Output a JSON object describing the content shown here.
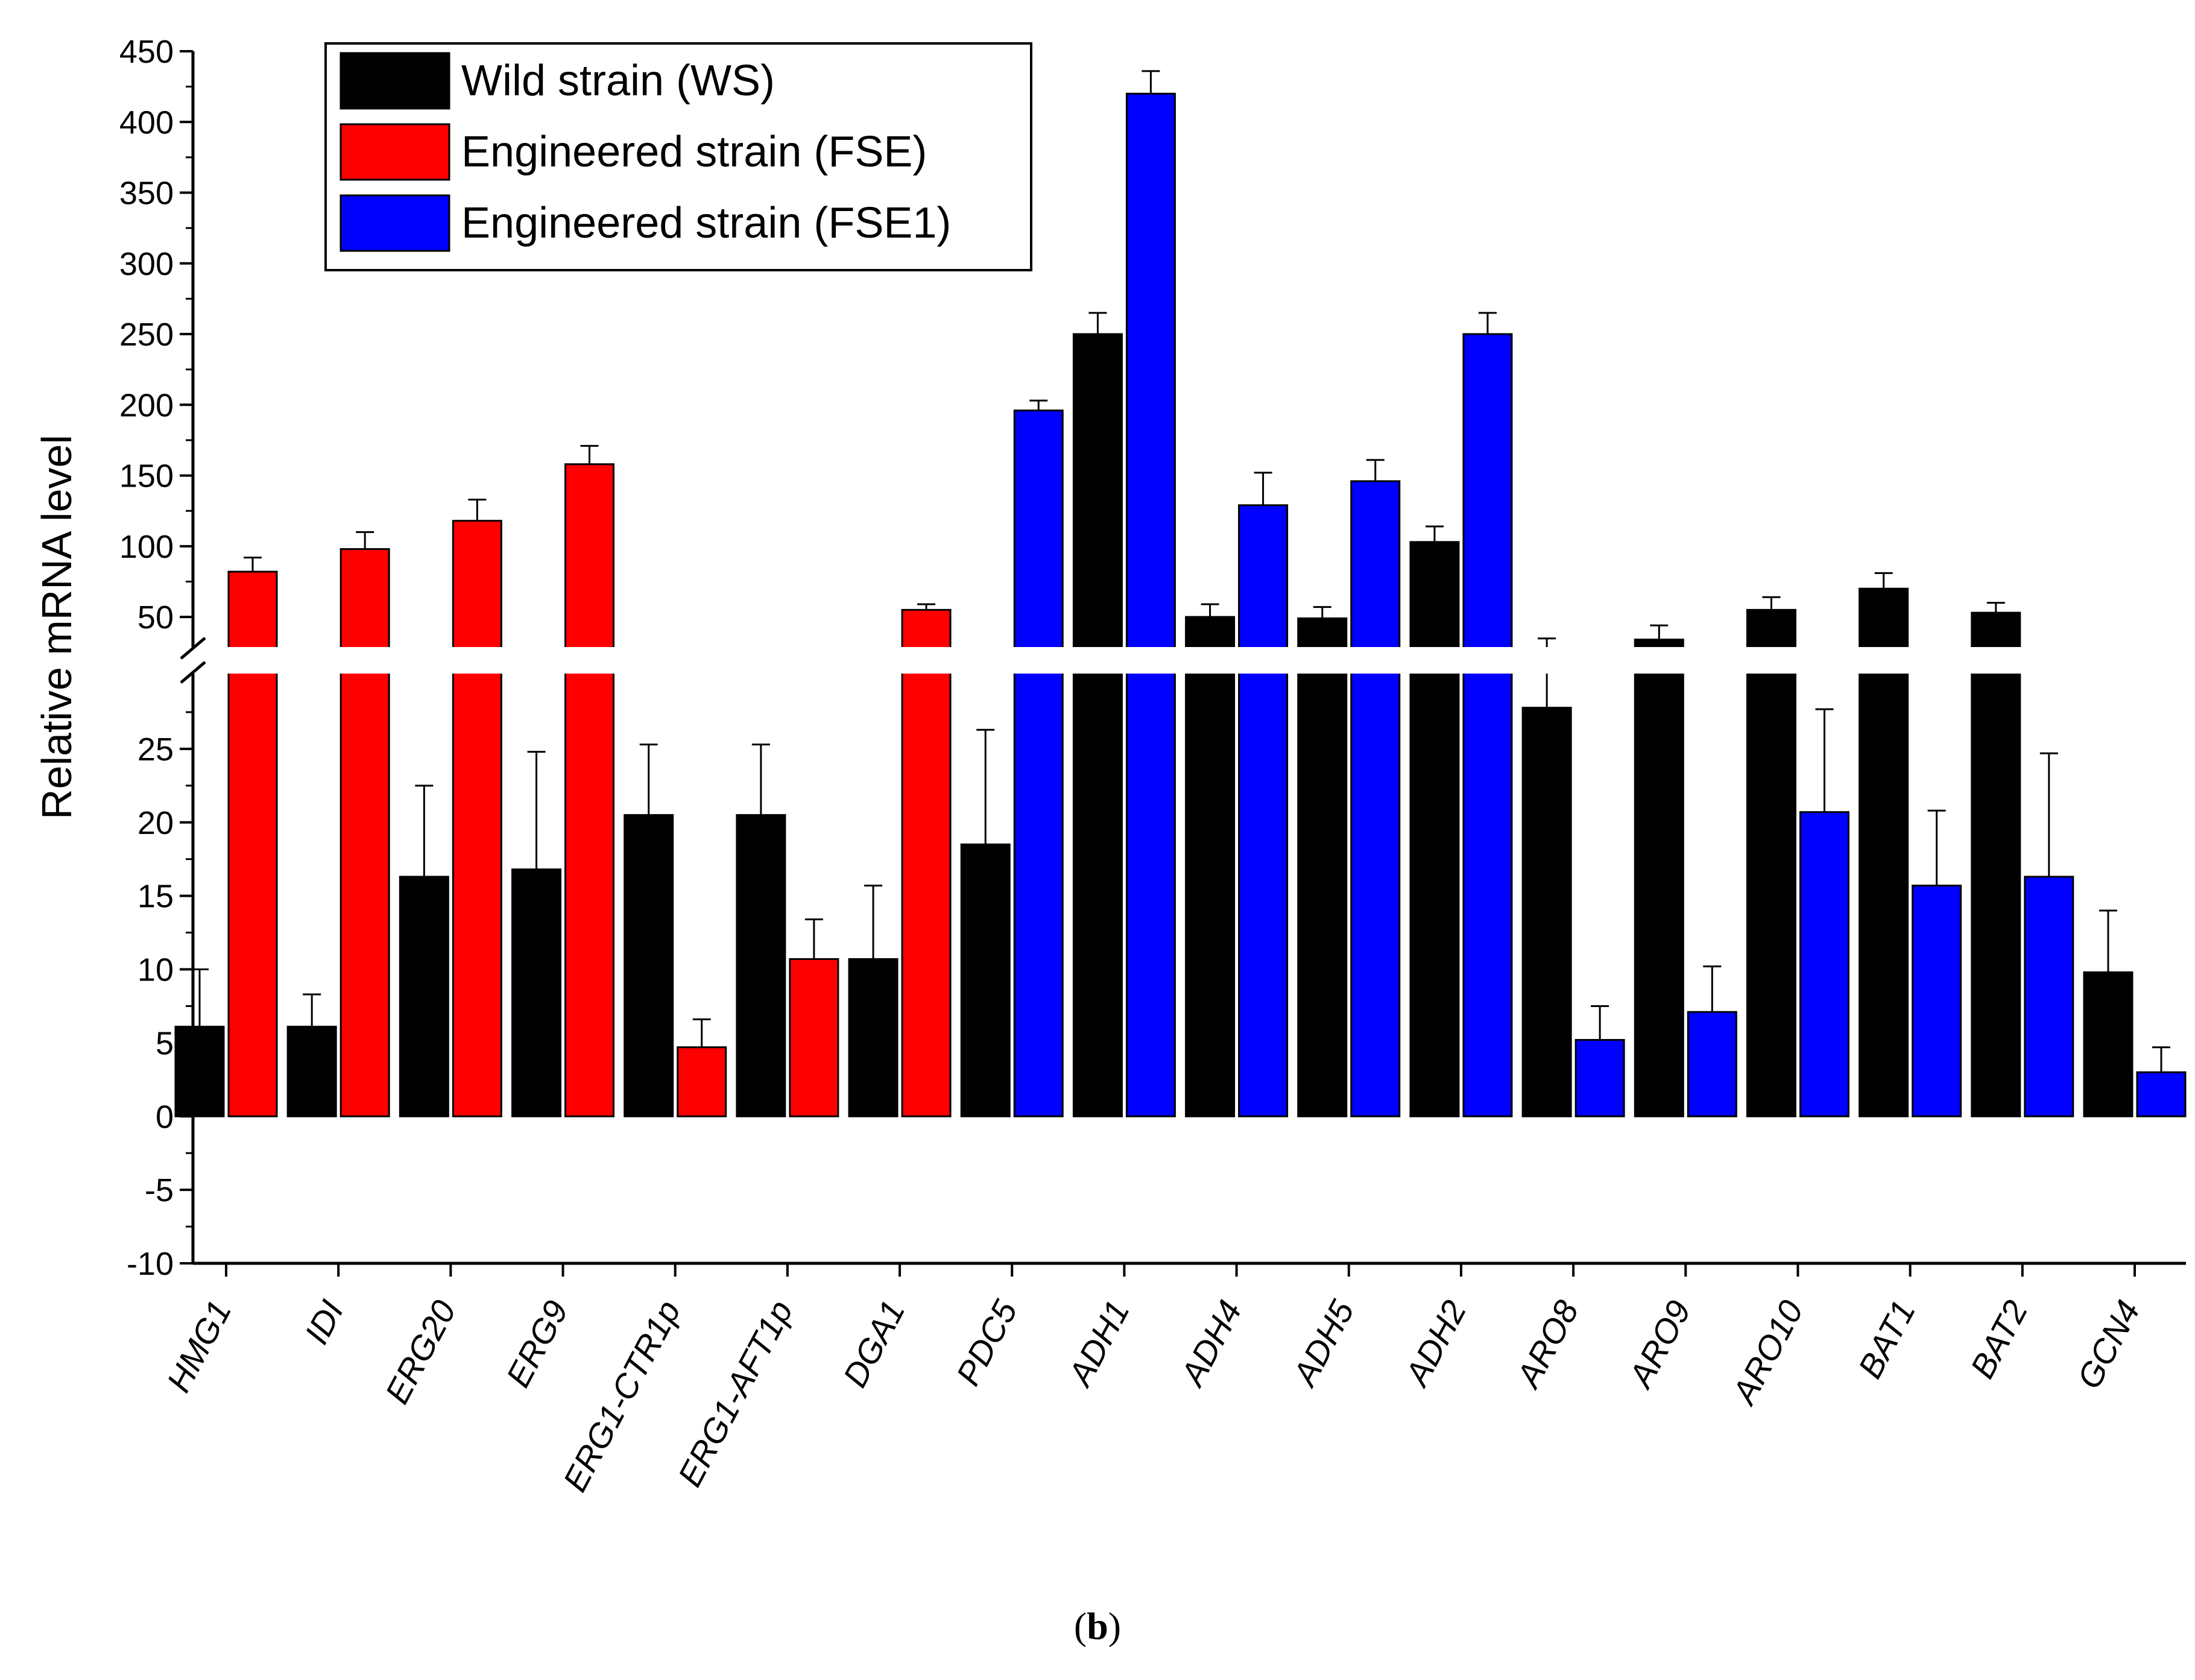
{
  "chart_data": {
    "type": "bar",
    "title": "",
    "xlabel": "",
    "ylabel": "Relative mRNA level",
    "axis_break": {
      "lower_range": [
        -10,
        30
      ],
      "upper_range": [
        30,
        450
      ]
    },
    "lower_ticks": [
      -10,
      -5,
      0,
      5,
      10,
      15,
      20,
      25
    ],
    "upper_ticks": [
      50,
      100,
      150,
      200,
      250,
      300,
      350,
      400,
      450
    ],
    "grid": false,
    "legend_position": "top-left",
    "series": [
      {
        "key": "ws",
        "name": "Wild strain (WS)",
        "color": "#000000"
      },
      {
        "key": "fse",
        "name": "Engineered strain (FSE)",
        "color": "#ff0000"
      },
      {
        "key": "fse1",
        "name": "Engineered strain (FSE1)",
        "color": "#0000ff"
      }
    ],
    "categories": [
      {
        "label": "HMG1",
        "ws": 6.1,
        "ws_err": 3.9,
        "eng": "fse",
        "eng_val": 82,
        "eng_err": 10
      },
      {
        "label": "IDI",
        "ws": 6.1,
        "ws_err": 2.2,
        "eng": "fse",
        "eng_val": 98,
        "eng_err": 12
      },
      {
        "label": "ERG20",
        "ws": 16.3,
        "ws_err": 6.2,
        "eng": "fse",
        "eng_val": 118,
        "eng_err": 15
      },
      {
        "label": "ERG9",
        "ws": 16.8,
        "ws_err": 8.0,
        "eng": "fse",
        "eng_val": 158,
        "eng_err": 13
      },
      {
        "label": "ERG1-CTR1p",
        "ws": 20.5,
        "ws_err": 4.8,
        "eng": "fse",
        "eng_val": 4.7,
        "eng_err": 1.9
      },
      {
        "label": "ERG1-AFT1p",
        "ws": 20.5,
        "ws_err": 4.8,
        "eng": "fse",
        "eng_val": 10.7,
        "eng_err": 2.7
      },
      {
        "label": "DGA1",
        "ws": 10.7,
        "ws_err": 5.0,
        "eng": "fse",
        "eng_val": 55,
        "eng_err": 4
      },
      {
        "label": "PDC5",
        "ws": 18.5,
        "ws_err": 7.8,
        "eng": "fse1",
        "eng_val": 196,
        "eng_err": 7
      },
      {
        "label": "ADH1",
        "ws": 250,
        "ws_err": 15,
        "eng": "fse1",
        "eng_val": 420,
        "eng_err": 16
      },
      {
        "label": "ADH4",
        "ws": 50,
        "ws_err": 9,
        "eng": "fse1",
        "eng_val": 129,
        "eng_err": 23
      },
      {
        "label": "ADH5",
        "ws": 49,
        "ws_err": 8,
        "eng": "fse1",
        "eng_val": 146,
        "eng_err": 15
      },
      {
        "label": "ADH2",
        "ws": 103,
        "ws_err": 11,
        "eng": "fse1",
        "eng_val": 250,
        "eng_err": 15
      },
      {
        "label": "ARO8",
        "ws": 27.8,
        "ws_err": 7,
        "eng": "fse1",
        "eng_val": 5.2,
        "eng_err": 2.3
      },
      {
        "label": "ARO9",
        "ws": 34,
        "ws_err": 10,
        "eng": "fse1",
        "eng_val": 7.1,
        "eng_err": 3.1
      },
      {
        "label": "ARO10",
        "ws": 55,
        "ws_err": 9,
        "eng": "fse1",
        "eng_val": 20.7,
        "eng_err": 7
      },
      {
        "label": "BAT1",
        "ws": 70,
        "ws_err": 11,
        "eng": "fse1",
        "eng_val": 15.7,
        "eng_err": 5.1
      },
      {
        "label": "BAT2",
        "ws": 53,
        "ws_err": 7,
        "eng": "fse1",
        "eng_val": 16.3,
        "eng_err": 8.4
      },
      {
        "label": "GCN4",
        "ws": 9.8,
        "ws_err": 4.2,
        "eng": "fse1",
        "eng_val": 3.0,
        "eng_err": 1.7
      }
    ]
  },
  "caption": {
    "open": "(",
    "letter": "b",
    "close": ")"
  }
}
